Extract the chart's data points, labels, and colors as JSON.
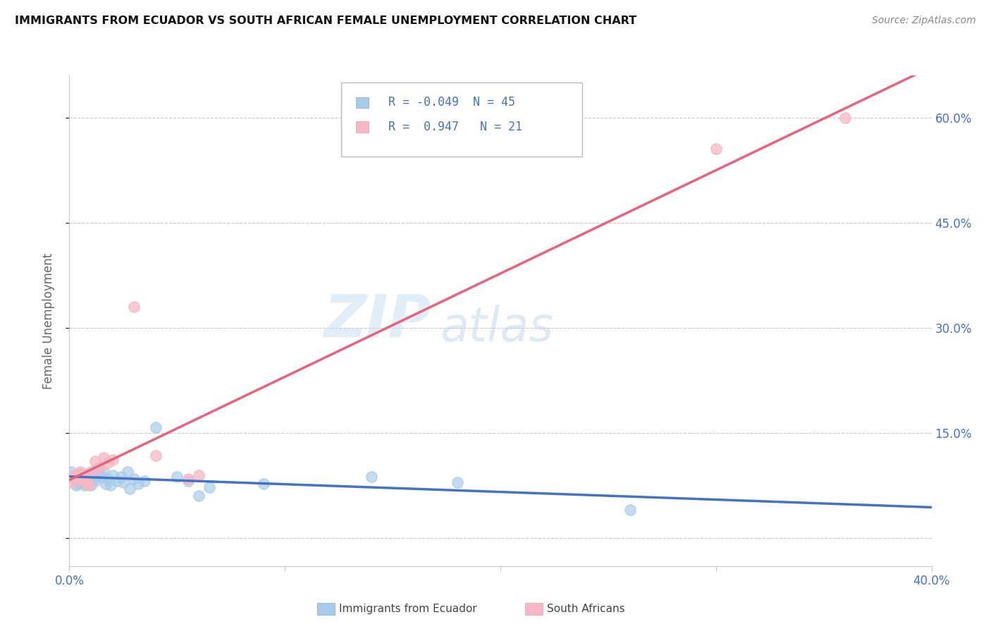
{
  "title": "IMMIGRANTS FROM ECUADOR VS SOUTH AFRICAN FEMALE UNEMPLOYMENT CORRELATION CHART",
  "source": "Source: ZipAtlas.com",
  "ylabel": "Female Unemployment",
  "ytick_vals": [
    0.0,
    0.15,
    0.3,
    0.45,
    0.6
  ],
  "ytick_labels": [
    "",
    "15.0%",
    "30.0%",
    "45.0%",
    "60.0%"
  ],
  "xlim": [
    0.0,
    0.4
  ],
  "ylim": [
    -0.04,
    0.66
  ],
  "legend1_label": "Immigrants from Ecuador",
  "legend2_label": "South Africans",
  "r1": "-0.049",
  "n1": "45",
  "r2": "0.947",
  "n2": "21",
  "blue_color": "#a8cce8",
  "pink_color": "#f5b8c4",
  "blue_line_color": "#4472c4",
  "pink_line_color": "#e8637a",
  "blue_scatter": [
    [
      0.001,
      0.095
    ],
    [
      0.002,
      0.088
    ],
    [
      0.003,
      0.082
    ],
    [
      0.003,
      0.075
    ],
    [
      0.004,
      0.09
    ],
    [
      0.004,
      0.078
    ],
    [
      0.005,
      0.085
    ],
    [
      0.005,
      0.092
    ],
    [
      0.006,
      0.08
    ],
    [
      0.006,
      0.088
    ],
    [
      0.007,
      0.076
    ],
    [
      0.007,
      0.085
    ],
    [
      0.008,
      0.092
    ],
    [
      0.008,
      0.078
    ],
    [
      0.009,
      0.082
    ],
    [
      0.009,
      0.088
    ],
    [
      0.01,
      0.09
    ],
    [
      0.01,
      0.075
    ],
    [
      0.011,
      0.085
    ],
    [
      0.012,
      0.082
    ],
    [
      0.013,
      0.1
    ],
    [
      0.014,
      0.092
    ],
    [
      0.015,
      0.088
    ],
    [
      0.016,
      0.095
    ],
    [
      0.017,
      0.078
    ],
    [
      0.018,
      0.085
    ],
    [
      0.019,
      0.075
    ],
    [
      0.02,
      0.09
    ],
    [
      0.022,
      0.082
    ],
    [
      0.024,
      0.088
    ],
    [
      0.025,
      0.08
    ],
    [
      0.027,
      0.095
    ],
    [
      0.028,
      0.07
    ],
    [
      0.03,
      0.085
    ],
    [
      0.032,
      0.078
    ],
    [
      0.035,
      0.082
    ],
    [
      0.04,
      0.158
    ],
    [
      0.05,
      0.088
    ],
    [
      0.055,
      0.082
    ],
    [
      0.06,
      0.06
    ],
    [
      0.065,
      0.072
    ],
    [
      0.09,
      0.078
    ],
    [
      0.14,
      0.088
    ],
    [
      0.18,
      0.08
    ],
    [
      0.26,
      0.04
    ]
  ],
  "pink_scatter": [
    [
      0.001,
      0.08
    ],
    [
      0.002,
      0.09
    ],
    [
      0.003,
      0.085
    ],
    [
      0.004,
      0.092
    ],
    [
      0.005,
      0.095
    ],
    [
      0.006,
      0.082
    ],
    [
      0.007,
      0.088
    ],
    [
      0.008,
      0.078
    ],
    [
      0.009,
      0.075
    ],
    [
      0.01,
      0.095
    ],
    [
      0.012,
      0.11
    ],
    [
      0.014,
      0.1
    ],
    [
      0.016,
      0.115
    ],
    [
      0.018,
      0.108
    ],
    [
      0.02,
      0.112
    ],
    [
      0.03,
      0.33
    ],
    [
      0.04,
      0.118
    ],
    [
      0.055,
      0.085
    ],
    [
      0.06,
      0.09
    ],
    [
      0.3,
      0.555
    ],
    [
      0.36,
      0.6
    ]
  ],
  "watermark_zip": "ZIP",
  "watermark_atlas": "atlas",
  "background_color": "#ffffff",
  "grid_color": "#c8c8c8"
}
